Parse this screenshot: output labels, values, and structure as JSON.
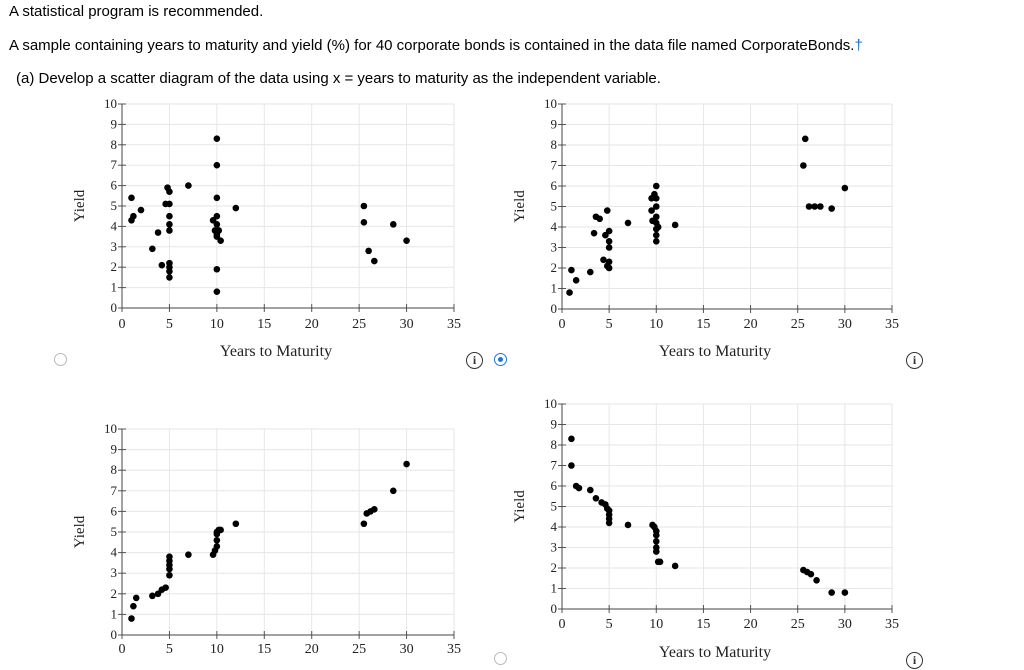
{
  "intro": "A statistical program is recommended.",
  "problem": "A sample containing years to maturity and yield (%) for 40 corporate bonds is contained in the data file named CorporateBonds.",
  "dagger": "†",
  "part_a": "(a)   Develop a scatter diagram of the data using x = years to maturity as the independent variable.",
  "info_icon_glyph": "i",
  "accent_color": "#1a78d6",
  "options": [
    {
      "selected": false
    },
    {
      "selected": true
    },
    {
      "selected": false
    },
    {
      "selected": false
    }
  ],
  "chart_data": [
    {
      "type": "scatter",
      "xlabel": "Years to Maturity",
      "ylabel": "Yield",
      "xlim": [
        0,
        35
      ],
      "ylim": [
        0,
        10
      ],
      "xticks": [
        0,
        5,
        10,
        15,
        20,
        25,
        30,
        35
      ],
      "yticks": [
        0,
        1,
        2,
        3,
        4,
        5,
        6,
        7,
        8,
        9,
        10
      ],
      "points": [
        [
          1,
          5.4
        ],
        [
          1,
          4.3
        ],
        [
          1.2,
          4.5
        ],
        [
          2,
          4.8
        ],
        [
          3.2,
          2.9
        ],
        [
          3.8,
          3.7
        ],
        [
          4.2,
          2.1
        ],
        [
          4.6,
          5.1
        ],
        [
          4.8,
          5.9
        ],
        [
          5,
          5.7
        ],
        [
          5,
          5.1
        ],
        [
          5,
          4.5
        ],
        [
          5,
          4.1
        ],
        [
          5,
          3.8
        ],
        [
          5,
          2.2
        ],
        [
          5,
          2
        ],
        [
          5,
          1.8
        ],
        [
          5,
          1.5
        ],
        [
          7,
          6
        ],
        [
          9.6,
          4.3
        ],
        [
          9.8,
          3.8
        ],
        [
          10,
          8.3
        ],
        [
          10,
          7
        ],
        [
          10,
          5.4
        ],
        [
          10,
          4.5
        ],
        [
          10,
          4.1
        ],
        [
          10,
          3.6
        ],
        [
          10,
          3.5
        ],
        [
          10,
          1.9
        ],
        [
          10,
          0.8
        ],
        [
          10.2,
          3.8
        ],
        [
          10.4,
          3.3
        ],
        [
          12,
          4.9
        ],
        [
          25.5,
          5
        ],
        [
          25.5,
          4.2
        ],
        [
          26,
          2.8
        ],
        [
          26.6,
          2.3
        ],
        [
          28.6,
          4.1
        ],
        [
          30,
          3.3
        ]
      ]
    },
    {
      "type": "scatter",
      "xlabel": "Years to Maturity",
      "ylabel": "Yield",
      "xlim": [
        0,
        35
      ],
      "ylim": [
        0,
        10
      ],
      "xticks": [
        0,
        5,
        10,
        15,
        20,
        25,
        30,
        35
      ],
      "yticks": [
        0,
        1,
        2,
        3,
        4,
        5,
        6,
        7,
        8,
        9,
        10
      ],
      "points": [
        [
          0.8,
          0.8
        ],
        [
          1,
          1.9
        ],
        [
          1.5,
          1.4
        ],
        [
          3,
          1.8
        ],
        [
          3.4,
          3.7
        ],
        [
          3.6,
          4.5
        ],
        [
          4,
          4.4
        ],
        [
          4.4,
          2.4
        ],
        [
          4.6,
          3.6
        ],
        [
          4.8,
          4.8
        ],
        [
          4.8,
          2.1
        ],
        [
          5,
          3.8
        ],
        [
          5,
          3.3
        ],
        [
          5,
          3
        ],
        [
          5,
          2.3
        ],
        [
          5,
          2
        ],
        [
          7,
          4.2
        ],
        [
          9.5,
          5.4
        ],
        [
          9.5,
          4.8
        ],
        [
          9.6,
          4.3
        ],
        [
          9.8,
          5.6
        ],
        [
          10,
          6
        ],
        [
          10,
          5.4
        ],
        [
          10,
          5
        ],
        [
          10,
          4.5
        ],
        [
          10,
          4.2
        ],
        [
          10,
          3.9
        ],
        [
          10,
          3.6
        ],
        [
          10,
          3.3
        ],
        [
          10.2,
          4
        ],
        [
          12,
          4.1
        ],
        [
          25.8,
          8.3
        ],
        [
          25.6,
          7
        ],
        [
          26.2,
          5
        ],
        [
          26.8,
          5
        ],
        [
          27.4,
          5
        ],
        [
          28.6,
          4.9
        ],
        [
          30,
          5.9
        ]
      ]
    },
    {
      "type": "scatter",
      "xlabel": "",
      "ylabel": "Yield",
      "xlim": [
        0,
        35
      ],
      "ylim": [
        0,
        10
      ],
      "xticks": [
        0,
        5,
        10,
        15,
        20,
        25,
        30,
        35
      ],
      "yticks": [
        0,
        1,
        2,
        3,
        4,
        5,
        6,
        7,
        8,
        9,
        10
      ],
      "points": [
        [
          1,
          0.8
        ],
        [
          1.2,
          1.4
        ],
        [
          1.5,
          1.8
        ],
        [
          3.2,
          1.9
        ],
        [
          3.8,
          2
        ],
        [
          4.2,
          2.2
        ],
        [
          4.6,
          2.3
        ],
        [
          5,
          2.9
        ],
        [
          5,
          3.2
        ],
        [
          5,
          3.4
        ],
        [
          5,
          3.6
        ],
        [
          5,
          3.8
        ],
        [
          7,
          3.9
        ],
        [
          9.6,
          3.9
        ],
        [
          9.8,
          4.1
        ],
        [
          10,
          4.3
        ],
        [
          10,
          4.6
        ],
        [
          10,
          4.9
        ],
        [
          10,
          5
        ],
        [
          10.2,
          5.1
        ],
        [
          10.4,
          5.1
        ],
        [
          12,
          5.4
        ],
        [
          25.5,
          5.4
        ],
        [
          25.8,
          5.9
        ],
        [
          26.2,
          6
        ],
        [
          26.6,
          6.1
        ],
        [
          28.6,
          7
        ],
        [
          30,
          8.3
        ]
      ]
    },
    {
      "type": "scatter",
      "xlabel": "Years to Maturity",
      "ylabel": "Yield",
      "xlim": [
        0,
        35
      ],
      "ylim": [
        0,
        10
      ],
      "xticks": [
        0,
        5,
        10,
        15,
        20,
        25,
        30,
        35
      ],
      "yticks": [
        0,
        1,
        2,
        3,
        4,
        5,
        6,
        7,
        8,
        9,
        10
      ],
      "points": [
        [
          1,
          8.3
        ],
        [
          1,
          7
        ],
        [
          1.5,
          6
        ],
        [
          1.8,
          5.9
        ],
        [
          3,
          5.8
        ],
        [
          3.6,
          5.4
        ],
        [
          4.2,
          5.2
        ],
        [
          4.6,
          5.1
        ],
        [
          4.8,
          4.9
        ],
        [
          5,
          4.8
        ],
        [
          5,
          4.6
        ],
        [
          5,
          4.4
        ],
        [
          5,
          4.2
        ],
        [
          7,
          4.1
        ],
        [
          9.6,
          4.1
        ],
        [
          9.8,
          4
        ],
        [
          10,
          3.8
        ],
        [
          10,
          3.6
        ],
        [
          10,
          3.3
        ],
        [
          10,
          3
        ],
        [
          10,
          2.8
        ],
        [
          10.2,
          2.3
        ],
        [
          10.4,
          2.3
        ],
        [
          12,
          2.1
        ],
        [
          25.6,
          1.9
        ],
        [
          26,
          1.8
        ],
        [
          26.4,
          1.7
        ],
        [
          27,
          1.4
        ],
        [
          28.6,
          0.8
        ],
        [
          30,
          0.8
        ]
      ]
    }
  ]
}
